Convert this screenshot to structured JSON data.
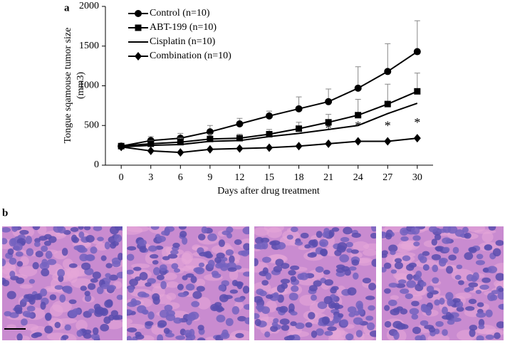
{
  "panel_labels": [
    "a",
    "b"
  ],
  "chart_data": {
    "type": "line",
    "ylabel": [
      "Tongue sqamouse tumor size",
      "(mm3)"
    ],
    "xlabel": "Days after drug treatment",
    "x": [
      0,
      3,
      6,
      9,
      12,
      15,
      18,
      21,
      24,
      27,
      30
    ],
    "xlim": [
      -1.6,
      31.6
    ],
    "xticks": [
      0,
      3,
      6,
      9,
      12,
      15,
      18,
      21,
      24,
      27,
      30
    ],
    "ylim": [
      0,
      2000
    ],
    "yticks": [
      0,
      500,
      1000,
      1500,
      2000
    ],
    "legend": "upper left",
    "series": [
      {
        "name": "Control (n=10)",
        "color": "#000000",
        "marker": "circle",
        "values": [
          240,
          310,
          340,
          420,
          520,
          620,
          710,
          800,
          970,
          1180,
          1430
        ],
        "errors": [
          20,
          50,
          60,
          80,
          70,
          60,
          150,
          160,
          270,
          350,
          390
        ]
      },
      {
        "name": "ABT-199 (n=10)",
        "color": "#000000",
        "marker": "square",
        "values": [
          240,
          270,
          290,
          330,
          340,
          390,
          460,
          540,
          630,
          770,
          930
        ],
        "errors": [
          20,
          40,
          50,
          60,
          50,
          60,
          80,
          100,
          200,
          250,
          230
        ]
      },
      {
        "name": "Cisplatin (n=10)",
        "color": "#000000",
        "marker": "none",
        "values": [
          230,
          250,
          260,
          300,
          310,
          360,
          400,
          450,
          500,
          650,
          780
        ]
      },
      {
        "name": "Combination (n=10)",
        "color": "#000000",
        "marker": "diamond",
        "values": [
          230,
          180,
          160,
          200,
          210,
          220,
          240,
          270,
          300,
          300,
          340
        ]
      }
    ],
    "annotations": [
      {
        "text": "*",
        "x": 21
      },
      {
        "text": "*",
        "x": 24
      },
      {
        "text": "*",
        "x": 27
      },
      {
        "text": "*",
        "x": 30
      }
    ]
  }
}
